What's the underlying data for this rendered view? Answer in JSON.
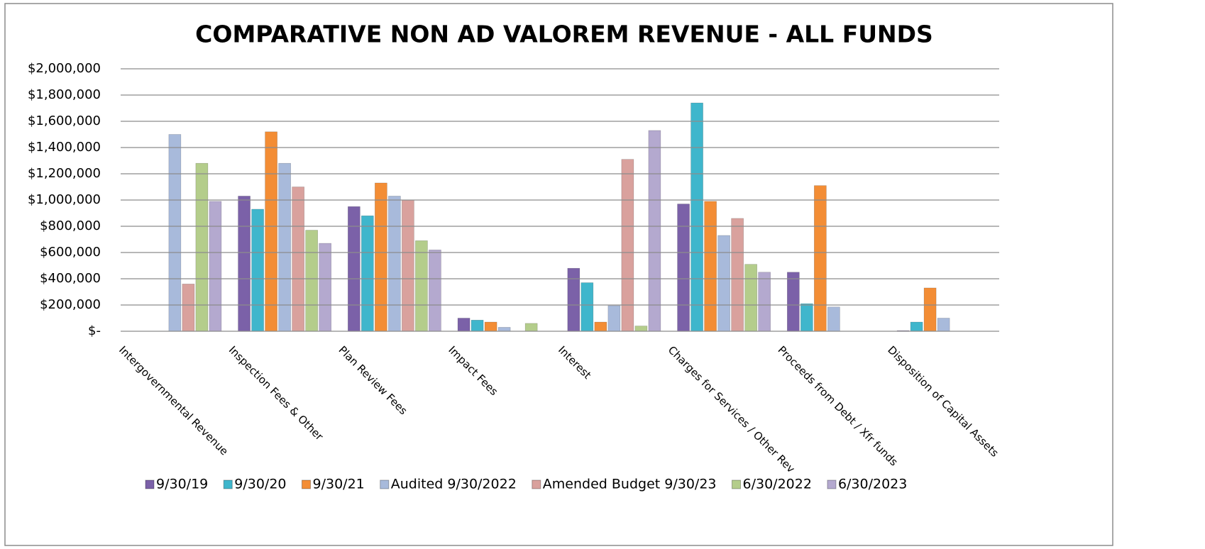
{
  "chart_data": {
    "type": "bar",
    "title": "COMPARATIVE NON AD VALOREM REVENUE - ALL FUNDS",
    "categories": [
      "Intergovernmental Revenue",
      "Inspection Fees & Other",
      "Plan Review Fees",
      "Impact Fees",
      "Interest",
      "Charges for Services / Other Rev",
      "Proceeds from Debt / Xfr funds",
      "Disposition of Capital Assets"
    ],
    "series": [
      {
        "name": "9/30/19",
        "color": "#7b61a8",
        "values": [
          null,
          1030000,
          950000,
          100000,
          480000,
          970000,
          450000,
          5000
        ]
      },
      {
        "name": "9/30/20",
        "color": "#3fb6cc",
        "values": [
          null,
          930000,
          880000,
          85000,
          370000,
          1740000,
          210000,
          70000
        ]
      },
      {
        "name": "9/30/21",
        "color": "#f38d35",
        "values": [
          null,
          1520000,
          1130000,
          70000,
          70000,
          990000,
          1110000,
          330000
        ]
      },
      {
        "name": "Audited 9/30/2022",
        "color": "#a8badb",
        "values": [
          1500000,
          1280000,
          1030000,
          30000,
          195000,
          730000,
          185000,
          100000
        ]
      },
      {
        "name": "Amended Budget 9/30/23",
        "color": "#d9a19d",
        "values": [
          360000,
          1100000,
          1000000,
          0,
          1310000,
          860000,
          0,
          null
        ]
      },
      {
        "name": "6/30/2022",
        "color": "#b4cd8b",
        "values": [
          1280000,
          770000,
          690000,
          60000,
          40000,
          510000,
          0,
          null
        ]
      },
      {
        "name": "6/30/2023",
        "color": "#b4a9cf",
        "values": [
          990000,
          670000,
          620000,
          0,
          1530000,
          450000,
          0,
          null
        ]
      }
    ],
    "ylim": [
      0,
      2000000
    ],
    "yticks": [
      {
        "value": 0,
        "label": "$-"
      },
      {
        "value": 200000,
        "label": "$200,000"
      },
      {
        "value": 400000,
        "label": "$400,000"
      },
      {
        "value": 600000,
        "label": "$600,000"
      },
      {
        "value": 800000,
        "label": "$800,000"
      },
      {
        "value": 1000000,
        "label": "$1,000,000"
      },
      {
        "value": 1200000,
        "label": "$1,200,000"
      },
      {
        "value": 1400000,
        "label": "$1,400,000"
      },
      {
        "value": 1600000,
        "label": "$1,600,000"
      },
      {
        "value": 1800000,
        "label": "$1,800,000"
      },
      {
        "value": 2000000,
        "label": "$2,000,000"
      }
    ],
    "grid": true,
    "legend": "bottom"
  }
}
